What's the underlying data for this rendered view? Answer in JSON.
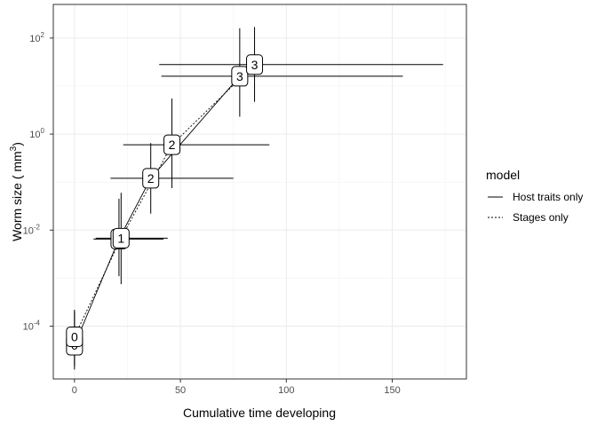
{
  "chart_data": {
    "type": "scatter",
    "xlabel": "Cumulative time developing",
    "ylabel": "Worm size ( mm",
    "ylabel_sup": "3",
    "ylabel_close": ")",
    "xlim": [
      -10,
      185
    ],
    "ylim_log10": [
      -5.1,
      2.7
    ],
    "y_scale": "log10",
    "grid": true,
    "x_ticks": [
      0,
      50,
      100,
      150
    ],
    "x_tick_labels": [
      "0",
      "50",
      "100",
      "150"
    ],
    "y_ticks_log10": [
      -4,
      -2,
      0,
      2
    ],
    "y_tick_base": "10",
    "y_tick_exponents": [
      "-4",
      "-2",
      "0",
      "2"
    ],
    "legend": {
      "title": "model",
      "position": "right",
      "entries": [
        {
          "label": "Host traits only",
          "dash": "solid"
        },
        {
          "label": "Stages only",
          "dash": "dotted"
        }
      ]
    },
    "series": [
      {
        "name": "Host traits only",
        "dash": "solid",
        "points": [
          {
            "label": "0",
            "x": 0,
            "y": 4e-05,
            "xlo": 0,
            "xhi": 0,
            "ylo": 1.25e-05,
            "yhi": 0.00022
          },
          {
            "label": "1",
            "x": 21,
            "y": 0.0065,
            "xlo": 9,
            "xhi": 42,
            "ylo": 0.0011,
            "yhi": 0.045
          },
          {
            "label": "2",
            "x": 36,
            "y": 0.12,
            "xlo": 17,
            "xhi": 75,
            "ylo": 0.022,
            "yhi": 0.65
          },
          {
            "label": "3",
            "x": 78,
            "y": 16,
            "xlo": 41,
            "xhi": 155,
            "ylo": 2.3,
            "yhi": 160
          }
        ]
      },
      {
        "name": "Stages only",
        "dash": "dotted",
        "points": [
          {
            "label": "0",
            "x": 0,
            "y": 6e-05,
            "xlo": 0,
            "xhi": 0,
            "ylo": 1.5e-05,
            "yhi": 0.0002
          },
          {
            "label": "1",
            "x": 22,
            "y": 0.0068,
            "xlo": 10,
            "xhi": 44,
            "ylo": 0.00075,
            "yhi": 0.06
          },
          {
            "label": "2",
            "x": 46,
            "y": 0.6,
            "xlo": 23,
            "xhi": 92,
            "ylo": 0.075,
            "yhi": 5.5
          },
          {
            "label": "3",
            "x": 85,
            "y": 28,
            "xlo": 40,
            "xhi": 174,
            "ylo": 4.7,
            "yhi": 170
          }
        ]
      }
    ]
  }
}
